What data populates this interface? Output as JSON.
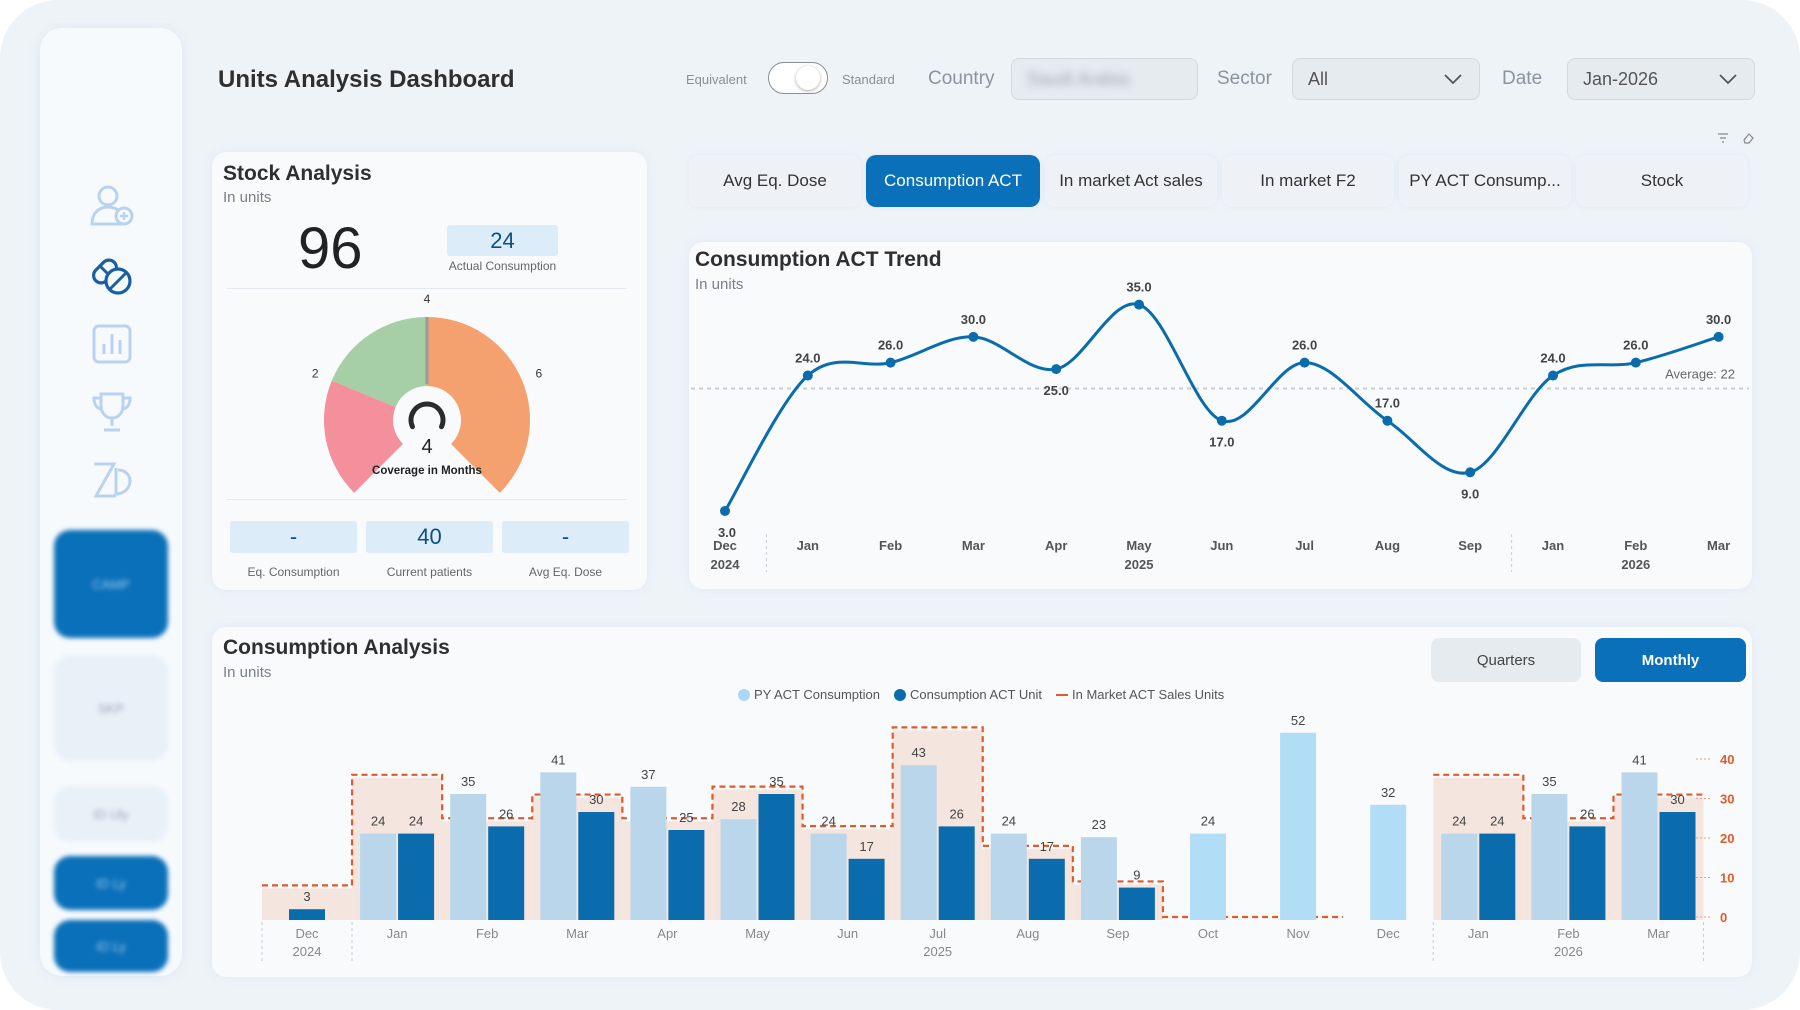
{
  "title": "Units Analysis Dashboard",
  "toggle": {
    "left_label": "Equivalent",
    "right_label": "Standard"
  },
  "filters": {
    "country_label": "Country",
    "country_value": "Saudi Arabia",
    "sector_label": "Sector",
    "sector_value": "All",
    "date_label": "Date",
    "date_value": "Jan-2026"
  },
  "sidebar": {
    "icons": [
      "user-add-icon",
      "pills-icon",
      "bar-chart-icon",
      "trophy-icon",
      "logo-icon"
    ],
    "buttons": [
      "CAMP",
      "SKP",
      "ID Uly",
      "ID Ly",
      "ID Ly"
    ]
  },
  "stock": {
    "title": "Stock Analysis",
    "subtitle": "In units",
    "value": "96",
    "actual_consumption": "24",
    "actual_consumption_label": "Actual Consumption",
    "gauge": {
      "value": "4",
      "caption": "Coverage in Months",
      "ticks": [
        "0",
        "2",
        "4",
        "6",
        "8"
      ],
      "max": 8,
      "pointer_value": 4,
      "bands": [
        {
          "from": 0,
          "to": 2,
          "color": "#f4909b"
        },
        {
          "from": 2,
          "to": 4,
          "color": "#a6cfa5"
        },
        {
          "from": 4,
          "to": 8,
          "color": "#f5a16f"
        }
      ]
    },
    "kpis": [
      {
        "value": "-",
        "label": "Eq. Consumption"
      },
      {
        "value": "40",
        "label": "Current patients"
      },
      {
        "value": "-",
        "label": "Avg Eq. Dose"
      }
    ]
  },
  "tabs": [
    {
      "label": "Avg Eq. Dose",
      "active": false
    },
    {
      "label": "Consumption ACT",
      "active": true
    },
    {
      "label": "In market Act sales",
      "active": false
    },
    {
      "label": "In market F2",
      "active": false
    },
    {
      "label": "PY ACT Consump...",
      "active": false
    },
    {
      "label": "Stock",
      "active": false
    }
  ],
  "trend": {
    "title": "Consumption ACT Trend",
    "subtitle": "In units",
    "average_label": "Average: 22"
  },
  "analysis": {
    "title": "Consumption Analysis",
    "subtitle": "In units",
    "quarters_label": "Quarters",
    "monthly_label": "Monthly",
    "legend": [
      "PY ACT Consumption",
      "Consumption ACT Unit",
      "In Market ACT Sales Units"
    ]
  },
  "chart_data": [
    {
      "type": "line",
      "title": "Consumption ACT Trend",
      "subtitle": "In units",
      "x": [
        "Dec 2024",
        "Jan",
        "Feb",
        "Mar",
        "Apr",
        "May 2025",
        "Jun",
        "Jul",
        "Aug",
        "Sep",
        "Jan",
        "Feb 2026",
        "Mar"
      ],
      "x_ticks": [
        {
          "label": "Dec",
          "year": "2024"
        },
        {
          "label": "Jan",
          "year": ""
        },
        {
          "label": "Feb",
          "year": ""
        },
        {
          "label": "Mar",
          "year": ""
        },
        {
          "label": "Apr",
          "year": ""
        },
        {
          "label": "May",
          "year": "2025"
        },
        {
          "label": "Jun",
          "year": ""
        },
        {
          "label": "Jul",
          "year": ""
        },
        {
          "label": "Aug",
          "year": ""
        },
        {
          "label": "Sep",
          "year": ""
        },
        {
          "label": "Jan",
          "year": ""
        },
        {
          "label": "Feb",
          "year": "2026"
        },
        {
          "label": "Mar",
          "year": ""
        }
      ],
      "values": [
        3.0,
        24.0,
        26.0,
        30.0,
        25.0,
        35.0,
        17.0,
        26.0,
        17.0,
        9.0,
        24.0,
        26.0,
        30.0
      ],
      "labels": [
        "3.0",
        "24.0",
        "26.0",
        "30.0",
        "25.0",
        "35.0",
        "17.0",
        "26.0",
        "17.0",
        "9.0",
        "24.0",
        "26.0",
        "30.0"
      ],
      "average": 22,
      "ylim": [
        0,
        40
      ],
      "color": "#0a6cad",
      "grid": false
    },
    {
      "type": "bar",
      "title": "Consumption Analysis",
      "subtitle": "In units",
      "categories": [
        "Dec",
        "Jan",
        "Feb",
        "Mar",
        "Apr",
        "May",
        "Jun",
        "Jul",
        "Aug",
        "Sep",
        "Oct",
        "Nov",
        "Dec",
        "Jan",
        "Feb",
        "Mar"
      ],
      "year_labels": [
        "2024",
        "",
        "",
        "",
        "",
        "",
        "",
        "2025",
        "",
        "",
        "",
        "",
        "",
        "",
        "2026",
        ""
      ],
      "series": [
        {
          "name": "PY ACT Consumption",
          "color": "#a9d8f5",
          "values": [
            null,
            24,
            35,
            41,
            37,
            28,
            24,
            43,
            24,
            23,
            24,
            52,
            32,
            24,
            35,
            41
          ]
        },
        {
          "name": "Consumption ACT Unit",
          "color": "#0a6cad",
          "values": [
            3,
            24,
            26,
            30,
            25,
            35,
            17,
            26,
            17,
            9,
            null,
            null,
            null,
            24,
            26,
            30
          ]
        },
        {
          "name": "In Market ACT Sales Units",
          "color": "#e25a2a",
          "values": [
            8,
            36,
            25,
            31,
            25,
            33,
            23,
            48,
            18,
            9,
            0,
            0,
            null,
            36,
            25,
            31
          ]
        }
      ],
      "bar_labels": {
        "py": [
          "",
          "24",
          "35",
          "41",
          "37",
          "28",
          "24",
          "43",
          "24",
          "23",
          "24",
          "52",
          "32",
          "24",
          "35",
          "41"
        ],
        "act": [
          "3",
          "24",
          "26",
          "30",
          "25",
          "35",
          "17",
          "26",
          "17",
          "9",
          "",
          "",
          "",
          "24",
          "26",
          "30"
        ]
      },
      "ylim": [
        0,
        55
      ],
      "secondary_axis": {
        "ticks": [
          "40",
          "30",
          "20",
          "10",
          "0"
        ],
        "values": [
          40,
          30,
          20,
          10,
          0
        ],
        "range": [
          0,
          45
        ]
      },
      "legend_position": "top-center"
    }
  ]
}
